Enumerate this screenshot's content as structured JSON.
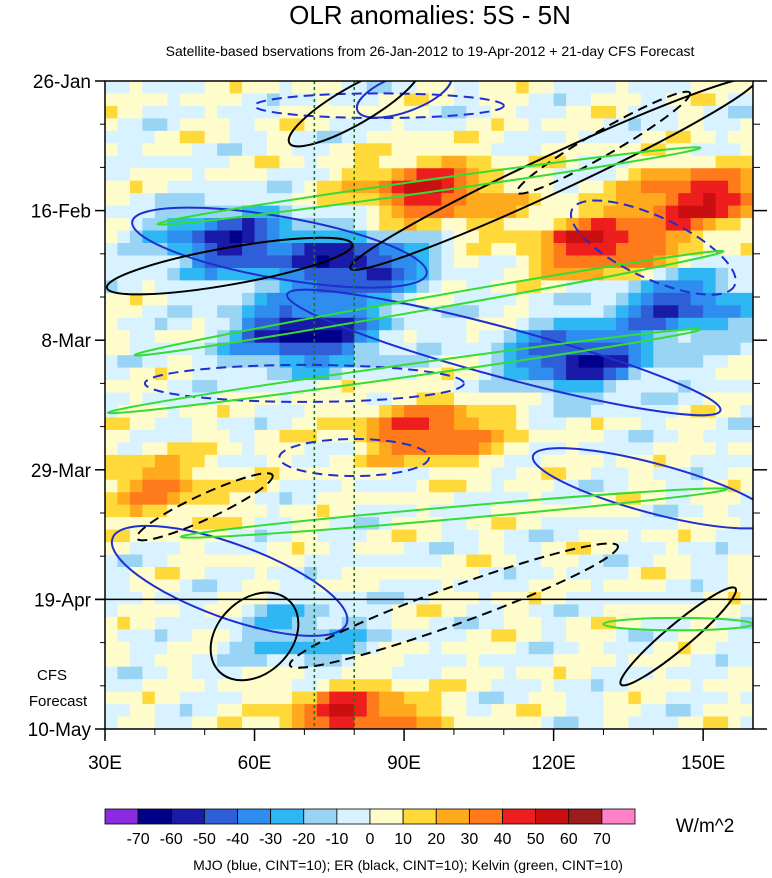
{
  "chart_data": {
    "type": "heatmap",
    "title": "OLR anomalies: 5S - 5N",
    "subtitle": "Satellite-based bservations from 26-Jan-2012 to 19-Apr-2012 + 21-day CFS Forecast",
    "x_axis": {
      "range": [
        30,
        160
      ],
      "ticks": [
        {
          "value": 30,
          "label": "30E"
        },
        {
          "value": 60,
          "label": "60E"
        },
        {
          "value": 90,
          "label": "90E"
        },
        {
          "value": 120,
          "label": "120E"
        },
        {
          "value": 150,
          "label": "150E"
        }
      ]
    },
    "y_axis": {
      "start": "26-Jan-2012",
      "end": "10-May-2012",
      "direction": "time increases downward",
      "ticks": [
        {
          "value": "26-Jan-2012",
          "label": "26-Jan"
        },
        {
          "value": "16-Feb-2012",
          "label": "16-Feb"
        },
        {
          "value": "8-Mar-2012",
          "label": "8-Mar"
        },
        {
          "value": "29-Mar-2012",
          "label": "29-Mar"
        },
        {
          "value": "19-Apr-2012",
          "label": "19-Apr"
        },
        {
          "value": "10-May-2012",
          "label": "10-May"
        }
      ]
    },
    "forecast_start": "19-Apr-2012",
    "forecast_label_lines": [
      "CFS",
      "Forecast"
    ],
    "reference_longitudes": [
      72,
      80
    ],
    "colorbar": {
      "units": "W/m^2",
      "levels": [
        -70,
        -60,
        -50,
        -40,
        -30,
        -20,
        -10,
        0,
        10,
        20,
        30,
        40,
        50,
        60,
        70
      ],
      "colors": [
        "#8a2be2",
        "#00008b",
        "#1a1aa8",
        "#2e5ed8",
        "#2f8df0",
        "#2fb7f4",
        "#9ad4f4",
        "#d8f3ff",
        "#fffccc",
        "#ffd93a",
        "#ffaa1d",
        "#ff7a1a",
        "#ee1e1e",
        "#c90f0f",
        "#9b1c1c",
        "#ff82c8"
      ]
    },
    "contour_legend": "MJO (blue, CINT=10); ER (black, CINT=10); Kelvin (green, CINT=10)",
    "line_colors": {
      "mjo": "#1f2fd0",
      "er": "#000000",
      "kelvin": "#33dd33",
      "reference": "#1a7a1a"
    },
    "field_features": [
      {
        "lon": 95,
        "date": "13-Feb-2012",
        "value": 50
      },
      {
        "lon": 130,
        "date": "22-Feb-2012",
        "value": 55
      },
      {
        "lon": 150,
        "date": "14-Feb-2012",
        "value": 50
      },
      {
        "lon": 55,
        "date": "21-Feb-2012",
        "value": -55
      },
      {
        "lon": 80,
        "date": "25-Feb-2012",
        "value": -60
      },
      {
        "lon": 70,
        "date": "7-Mar-2012",
        "value": -65
      },
      {
        "lon": 125,
        "date": "11-Mar-2012",
        "value": -60
      },
      {
        "lon": 145,
        "date": "2-Mar-2012",
        "value": -50
      },
      {
        "lon": 95,
        "date": "23-Mar-2012",
        "value": 45
      },
      {
        "lon": 40,
        "date": "1-Apr-2012",
        "value": 30
      },
      {
        "lon": 80,
        "date": "8-May-2012",
        "value": 50
      },
      {
        "lon": 70,
        "date": "25-Apr-2012",
        "value": -25
      }
    ],
    "mjo_contours": [
      {
        "style": "solid",
        "center_lon": 90,
        "center_date": "28-Jan-2012",
        "lon_radius": 10,
        "day_radius": 3,
        "tilt_deg": -20
      },
      {
        "style": "solid",
        "center_lon": 65,
        "center_date": "22-Feb-2012",
        "lon_radius": 30,
        "day_radius": 5,
        "tilt_deg": 10
      },
      {
        "style": "solid",
        "center_lon": 110,
        "center_date": "10-Mar-2012",
        "lon_radius": 45,
        "day_radius": 4,
        "tilt_deg": 15
      },
      {
        "style": "dashed",
        "center_lon": 85,
        "center_date": "30-Jan-2012",
        "lon_radius": 25,
        "day_radius": 2,
        "tilt_deg": 0
      },
      {
        "style": "dashed",
        "center_lon": 70,
        "center_date": "15-Mar-2012",
        "lon_radius": 32,
        "day_radius": 3,
        "tilt_deg": 0
      },
      {
        "style": "dashed",
        "center_lon": 140,
        "center_date": "22-Feb-2012",
        "lon_radius": 18,
        "day_radius": 5,
        "tilt_deg": 25
      },
      {
        "style": "solid",
        "center_lon": 140,
        "center_date": "1-Apr-2012",
        "lon_radius": 25,
        "day_radius": 4,
        "tilt_deg": 15
      },
      {
        "style": "solid",
        "center_lon": 55,
        "center_date": "16-Apr-2012",
        "lon_radius": 25,
        "day_radius": 6,
        "tilt_deg": 20
      },
      {
        "style": "dashed",
        "center_lon": 80,
        "center_date": "27-Mar-2012",
        "lon_radius": 15,
        "day_radius": 3,
        "tilt_deg": 0
      }
    ],
    "er_contours": [
      {
        "style": "solid",
        "center_lon": 120,
        "center_date": "10-Feb-2012",
        "lon_radius": 45,
        "day_radius": 3,
        "tilt_deg": -25
      },
      {
        "style": "solid",
        "center_lon": 80,
        "center_date": "30-Jan-2012",
        "lon_radius": 15,
        "day_radius": 3,
        "tilt_deg": -30
      },
      {
        "style": "solid",
        "center_lon": 55,
        "center_date": "25-Feb-2012",
        "lon_radius": 25,
        "day_radius": 3,
        "tilt_deg": -10
      },
      {
        "style": "solid",
        "center_lon": 145,
        "center_date": "25-Apr-2012",
        "lon_radius": 15,
        "day_radius": 2,
        "tilt_deg": -40
      },
      {
        "style": "solid",
        "center_lon": 60,
        "center_date": "25-Apr-2012",
        "lon_radius": 10,
        "day_radius": 6,
        "tilt_deg": -45
      },
      {
        "style": "dashed",
        "center_lon": 100,
        "center_date": "20-Apr-2012",
        "lon_radius": 35,
        "day_radius": 3,
        "tilt_deg": -20
      },
      {
        "style": "dashed",
        "center_lon": 130,
        "center_date": "5-Feb-2012",
        "lon_radius": 20,
        "day_radius": 2,
        "tilt_deg": -30
      },
      {
        "style": "dashed",
        "center_lon": 50,
        "center_date": "4-Apr-2012",
        "lon_radius": 15,
        "day_radius": 2,
        "tilt_deg": -25
      }
    ],
    "kelvin_contours": [
      {
        "center_lon": 95,
        "center_date": "12-Feb-2012",
        "lon_radius": 55,
        "day_radius": 1,
        "tilt_deg": -8
      },
      {
        "center_lon": 95,
        "center_date": "2-Mar-2012",
        "lon_radius": 60,
        "day_radius": 1,
        "tilt_deg": -10
      },
      {
        "center_lon": 90,
        "center_date": "13-Mar-2012",
        "lon_radius": 60,
        "day_radius": 1,
        "tilt_deg": -8
      },
      {
        "center_lon": 100,
        "center_date": "5-Apr-2012",
        "lon_radius": 55,
        "day_radius": 1,
        "tilt_deg": -5
      },
      {
        "center_lon": 145,
        "center_date": "23-Apr-2012",
        "lon_radius": 15,
        "day_radius": 1,
        "tilt_deg": 0
      }
    ]
  }
}
